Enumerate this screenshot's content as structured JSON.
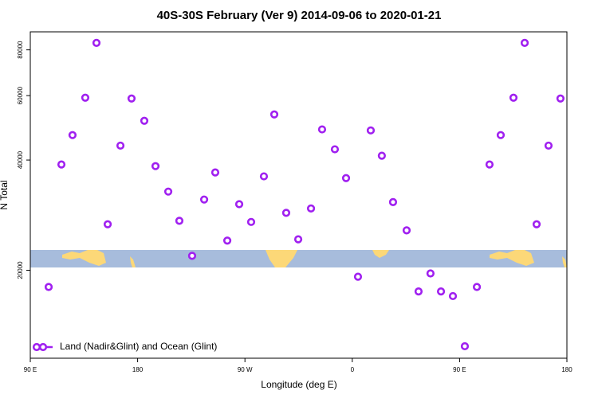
{
  "chart_data": {
    "type": "scatter",
    "title": "40S-30S February (Ver 9)   2014-09-06 to 2020-01-21",
    "x_label": "Longitude (deg E)",
    "y_label": "N Total",
    "xlim": [
      90,
      540
    ],
    "xticks": [
      {
        "value": 90,
        "label": "90 E"
      },
      {
        "value": 180,
        "label": "180"
      },
      {
        "value": 270,
        "label": "90 W"
      },
      {
        "value": 360,
        "label": "0"
      },
      {
        "value": 450,
        "label": "90 E"
      },
      {
        "value": 540,
        "label": "180"
      }
    ],
    "ylim": [
      11500,
      89600
    ],
    "yscale": "log",
    "yticks": [
      20000,
      40000,
      60000,
      80000
    ],
    "legend": "bottom-left",
    "series": [
      {
        "name": "Land (Nadir&Glint) and Ocean (Glint)",
        "color": "#a020f0",
        "x": [
          105.4,
          116.1,
          125.4,
          136.1,
          145.5,
          154.9,
          165.6,
          174.9,
          185.6,
          195.0,
          205.7,
          215.0,
          225.7,
          235.8,
          245.1,
          255.2,
          265.2,
          275.2,
          285.9,
          294.6,
          304.6,
          314.7,
          325.4,
          334.7,
          345.4,
          354.8,
          364.8,
          375.5,
          384.8,
          394.2,
          405.6,
          415.6,
          425.6,
          434.4,
          444.4,
          454.4,
          464.5,
          475.1,
          484.5,
          495.2,
          504.6,
          514.6,
          524.6,
          534.6
        ],
        "values": [
          18000,
          38900,
          46800,
          59200,
          83600,
          26700,
          43800,
          58900,
          51200,
          38500,
          32800,
          27300,
          21900,
          31200,
          37000,
          24100,
          30300,
          27100,
          36100,
          53300,
          28700,
          24300,
          29500,
          48500,
          42800,
          35700,
          19200,
          48200,
          41100,
          30700,
          25700,
          17500,
          19600,
          17500,
          17000,
          12400,
          18000,
          38900,
          46800,
          59200,
          83600,
          26700,
          43800,
          58900
        ]
      }
    ]
  }
}
